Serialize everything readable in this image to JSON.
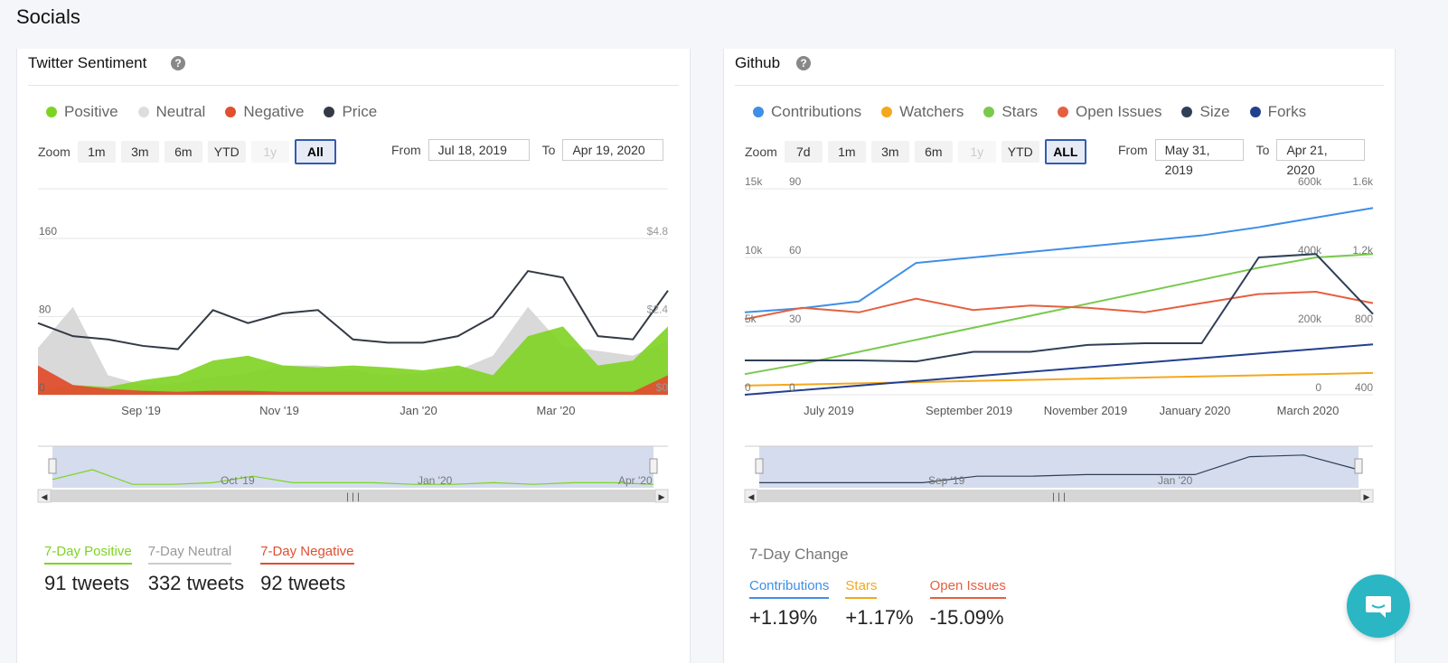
{
  "page": {
    "title": "Socials"
  },
  "twitter": {
    "title": "Twitter Sentiment",
    "help": "?",
    "legend": [
      {
        "label": "Positive",
        "color": "#7ed321"
      },
      {
        "label": "Neutral",
        "color": "#dddddd"
      },
      {
        "label": "Negative",
        "color": "#e04f2f"
      },
      {
        "label": "Price",
        "color": "#333a44"
      }
    ],
    "zoom_label": "Zoom",
    "zoom": [
      "1m",
      "3m",
      "6m",
      "YTD",
      "1y",
      "All"
    ],
    "zoom_active": "All",
    "zoom_disabled": [
      "1y"
    ],
    "from_label": "From",
    "from": "Jul 18, 2019",
    "to_label": "To",
    "to": "Apr 19, 2020",
    "stats": [
      {
        "label": "7-Day Positive",
        "value": "91 tweets",
        "color": "#7ed321"
      },
      {
        "label": "7-Day Neutral",
        "value": "332 tweets",
        "color": "#cccccc"
      },
      {
        "label": "7-Day Negative",
        "value": "92 tweets",
        "color": "#e04f2f"
      }
    ]
  },
  "github": {
    "title": "Github",
    "help": "?",
    "legend": [
      {
        "label": "Contributions",
        "color": "#3f8fe6"
      },
      {
        "label": "Watchers",
        "color": "#f4a81d"
      },
      {
        "label": "Stars",
        "color": "#79c94d"
      },
      {
        "label": "Open Issues",
        "color": "#e5603f"
      },
      {
        "label": "Size",
        "color": "#2f3f57"
      },
      {
        "label": "Forks",
        "color": "#23408e"
      }
    ],
    "zoom_label": "Zoom",
    "zoom": [
      "7d",
      "1m",
      "3m",
      "6m",
      "1y",
      "YTD",
      "ALL"
    ],
    "zoom_active": "ALL",
    "zoom_disabled": [
      "1y"
    ],
    "from_label": "From",
    "from": "May 31, 2019",
    "to_label": "To",
    "to": "Apr 21, 2020",
    "change_title": "7-Day Change",
    "changes": [
      {
        "label": "Contributions",
        "value": "+1.19%",
        "color": "#3f8fe6"
      },
      {
        "label": "Stars",
        "value": "+1.17%",
        "color": "#f4a81d"
      },
      {
        "label": "Open Issues",
        "value": "-15.09%",
        "color": "#e5603f"
      }
    ]
  },
  "chart_data": [
    {
      "type": "area",
      "title": "",
      "x_ticks": [
        "Sep '19",
        "Nov '19",
        "Jan '20",
        "Mar '20"
      ],
      "y_left_ticks": [
        "0",
        "80",
        "160"
      ],
      "y_right_ticks": [
        "$0",
        "$2.4",
        "$4.8"
      ],
      "ylim": [
        0,
        160
      ],
      "x": [
        "Jul 18, 2019",
        "Aug 1, 2019",
        "Aug 15, 2019",
        "Sep 1, 2019",
        "Sep 15, 2019",
        "Oct 1, 2019",
        "Oct 15, 2019",
        "Nov 1, 2019",
        "Nov 15, 2019",
        "Dec 1, 2019",
        "Dec 15, 2019",
        "Jan 1, 2020",
        "Jan 15, 2020",
        "Feb 1, 2020",
        "Feb 15, 2020",
        "Mar 1, 2020",
        "Mar 15, 2020",
        "Apr 1, 2020",
        "Apr 19, 2020"
      ],
      "series": [
        {
          "name": "Neutral",
          "values": [
            48,
            90,
            20,
            10,
            12,
            18,
            22,
            30,
            30,
            25,
            20,
            22,
            25,
            40,
            90,
            50,
            45,
            40,
            55
          ]
        },
        {
          "name": "Positive",
          "values": [
            5,
            10,
            8,
            15,
            20,
            35,
            40,
            30,
            28,
            30,
            28,
            25,
            30,
            20,
            60,
            70,
            30,
            35,
            70
          ]
        },
        {
          "name": "Negative",
          "values": [
            30,
            10,
            6,
            4,
            3,
            4,
            4,
            3,
            3,
            3,
            3,
            3,
            3,
            3,
            3,
            3,
            3,
            3,
            20
          ]
        },
        {
          "name": "Price",
          "values": [
            2.2,
            1.8,
            1.7,
            1.5,
            1.4,
            2.6,
            2.2,
            2.5,
            2.6,
            1.7,
            1.6,
            1.6,
            1.8,
            2.4,
            3.8,
            3.6,
            1.8,
            1.7,
            3.2
          ]
        }
      ]
    },
    {
      "type": "line",
      "title": "",
      "x_ticks": [
        "July 2019",
        "September 2019",
        "November 2019",
        "January 2020",
        "March 2020"
      ],
      "y_ticks_contributions": [
        "0",
        "5k",
        "10k",
        "15k"
      ],
      "y_ticks_watchers": [
        "0",
        "30",
        "60",
        "90"
      ],
      "y_ticks_size": [
        "0",
        "200k",
        "400k",
        "600k"
      ],
      "y_ticks_stars": [
        "400",
        "800",
        "1.2k",
        "1.6k"
      ],
      "x": [
        "May 31, 2019",
        "Jul 1, 2019",
        "Aug 1, 2019",
        "Sep 1, 2019",
        "Oct 1, 2019",
        "Nov 1, 2019",
        "Dec 1, 2019",
        "Jan 1, 2020",
        "Feb 1, 2020",
        "Mar 1, 2020",
        "Apr 1, 2020",
        "Apr 21, 2020"
      ],
      "series": [
        {
          "name": "Contributions",
          "values": [
            6000,
            6300,
            6800,
            9600,
            10000,
            10400,
            10800,
            11200,
            11600,
            12200,
            12900,
            13600
          ]
        },
        {
          "name": "Watchers",
          "values": [
            4,
            4.5,
            5,
            5.5,
            6,
            6.5,
            7,
            7.5,
            8,
            8.5,
            9,
            9.5
          ]
        },
        {
          "name": "Stars",
          "values": [
            520,
            580,
            650,
            720,
            790,
            860,
            930,
            1000,
            1070,
            1140,
            1200,
            1220
          ]
        },
        {
          "name": "Open Issues",
          "values": [
            33,
            38,
            36,
            42,
            37,
            39,
            38,
            36,
            40,
            44,
            45,
            40
          ]
        },
        {
          "name": "Size",
          "values": [
            100000,
            100000,
            100000,
            97000,
            125000,
            125000,
            145000,
            150000,
            150000,
            400000,
            410000,
            235000
          ]
        },
        {
          "name": "Forks",
          "values": [
            0,
            2,
            4,
            6,
            8,
            10,
            12,
            14,
            16,
            18,
            20,
            22
          ]
        }
      ]
    }
  ]
}
